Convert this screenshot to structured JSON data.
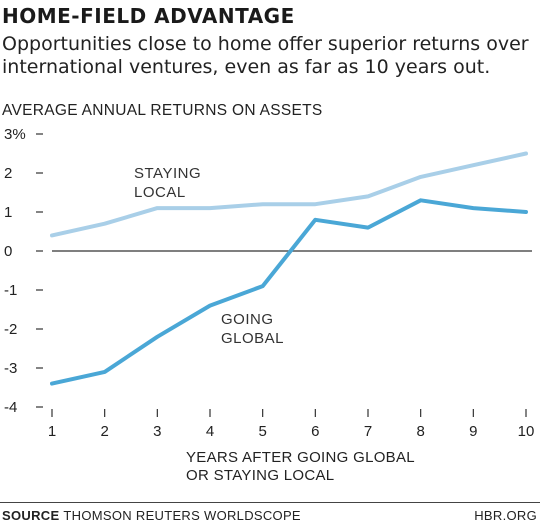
{
  "header": {
    "title": "HOME-FIELD ADVANTAGE",
    "subtitle": "Opportunities close to home offer superior returns over international ventures, even as far as 10 years out."
  },
  "footer": {
    "source_label": "SOURCE",
    "source_text": "THOMSON REUTERS WORLDSCOPE",
    "org": "HBR.ORG"
  },
  "colors": {
    "staying_local": "#a9cfe8",
    "going_global": "#4aa7d6",
    "zero_line": "#555555"
  },
  "chart_data": {
    "type": "line",
    "ylabel": "AVERAGE ANNUAL RETURNS ON ASSETS",
    "xlabel_lines": [
      "YEARS AFTER GOING GLOBAL",
      "OR STAYING LOCAL"
    ],
    "x": [
      1,
      2,
      3,
      4,
      5,
      6,
      7,
      8,
      9,
      10
    ],
    "ylim": [
      -4,
      3
    ],
    "yticks": [
      {
        "value": 3,
        "label": "3%"
      },
      {
        "value": 2,
        "label": "2"
      },
      {
        "value": 1,
        "label": "1"
      },
      {
        "value": 0,
        "label": "0"
      },
      {
        "value": -1,
        "label": "-1"
      },
      {
        "value": -2,
        "label": "-2"
      },
      {
        "value": -3,
        "label": "-3"
      },
      {
        "value": -4,
        "label": "-4"
      }
    ],
    "series": [
      {
        "name": "STAYING LOCAL",
        "label_lines": [
          "STAYING",
          "LOCAL"
        ],
        "values": [
          0.4,
          0.7,
          1.1,
          1.1,
          1.2,
          1.2,
          1.4,
          1.9,
          2.2,
          2.5
        ]
      },
      {
        "name": "GOING GLOBAL",
        "label_lines": [
          "GOING",
          "GLOBAL"
        ],
        "values": [
          -3.4,
          -3.1,
          -2.2,
          -1.4,
          -0.9,
          0.8,
          0.6,
          1.3,
          1.1,
          1.0
        ]
      }
    ],
    "grid": false,
    "legend": "inline labels"
  }
}
